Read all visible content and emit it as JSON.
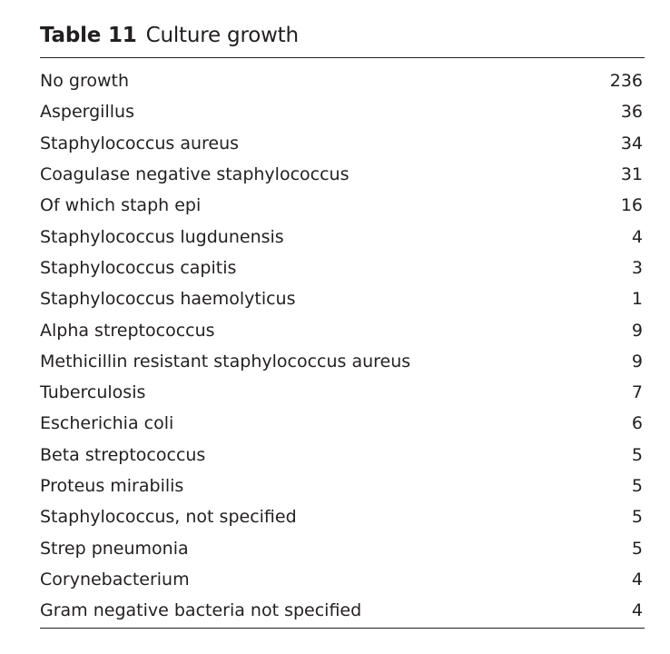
{
  "table": {
    "label": "Table 11",
    "title": "Culture growth",
    "rows": [
      {
        "organism": "No growth",
        "count": "236"
      },
      {
        "organism": "Aspergillus",
        "count": "36"
      },
      {
        "organism": "Staphylococcus aureus",
        "count": "34"
      },
      {
        "organism": "Coagulase negative staphylococcus",
        "count": "31"
      },
      {
        "organism": "Of which staph epi",
        "count": "16"
      },
      {
        "organism": "Staphylococcus lugdunensis",
        "count": "4"
      },
      {
        "organism": "Staphylococcus capitis",
        "count": "3"
      },
      {
        "organism": "Staphylococcus haemolyticus",
        "count": "1"
      },
      {
        "organism": "Alpha streptococcus",
        "count": "9"
      },
      {
        "organism": "Methicillin resistant staphylococcus aureus",
        "count": "9"
      },
      {
        "organism": "Tuberculosis",
        "count": "7"
      },
      {
        "organism": "Escherichia coli",
        "count": "6"
      },
      {
        "organism": "Beta streptococcus",
        "count": "5"
      },
      {
        "organism": "Proteus mirabilis",
        "count": "5"
      },
      {
        "organism": "Staphylococcus, not specified",
        "count": "5"
      },
      {
        "organism": "Strep pneumonia",
        "count": "5"
      },
      {
        "organism": "Corynebacterium",
        "count": "4"
      },
      {
        "organism": "Gram negative bacteria not specified",
        "count": "4"
      }
    ]
  }
}
